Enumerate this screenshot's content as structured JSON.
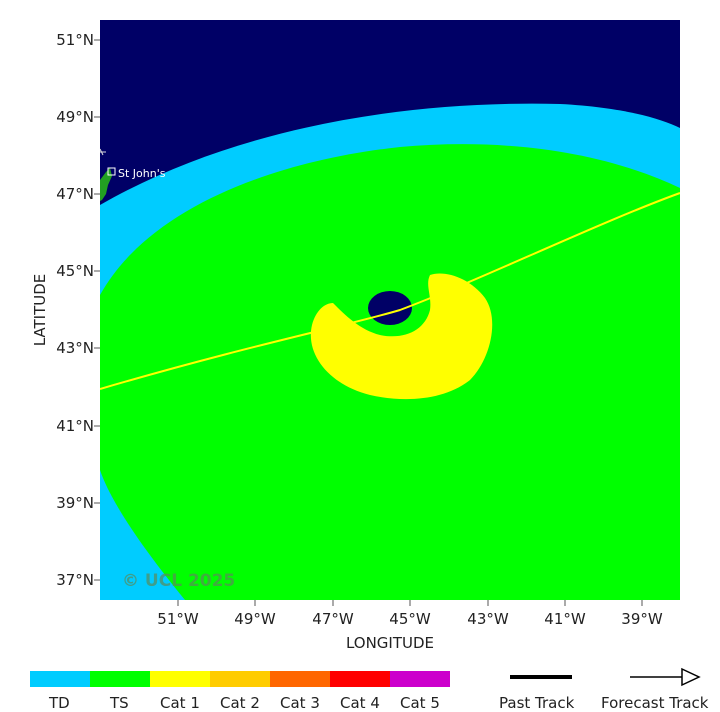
{
  "map": {
    "x_axis_label": "LONGITUDE",
    "y_axis_label": "LATITUDE",
    "lon_ticks": [
      "51°W",
      "49°W",
      "47°W",
      "45°W",
      "43°W",
      "41°W",
      "39°W"
    ],
    "lat_ticks": [
      "51°N",
      "49°N",
      "47°N",
      "45°N",
      "43°N",
      "41°N",
      "39°N",
      "37°N"
    ],
    "place_label": "St John's",
    "watermark": "© UCL 2025",
    "background_color": "#000066",
    "land_color": "#22a022",
    "track_color": "#ffff00"
  },
  "legend": {
    "categories": [
      {
        "label": "TD",
        "color": "#00ccff"
      },
      {
        "label": "TS",
        "color": "#00ff00"
      },
      {
        "label": "Cat 1",
        "color": "#ffff00"
      },
      {
        "label": "Cat 2",
        "color": "#ffcc00"
      },
      {
        "label": "Cat 3",
        "color": "#ff6600"
      },
      {
        "label": "Cat 4",
        "color": "#ff0000"
      },
      {
        "label": "Cat 5",
        "color": "#cc00cc"
      }
    ],
    "past_track_label": "Past Track",
    "forecast_track_label": "Forecast Track"
  }
}
